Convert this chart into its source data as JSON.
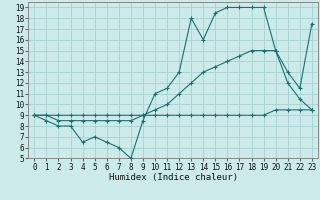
{
  "xlabel": "Humidex (Indice chaleur)",
  "background_color": "#cceaea",
  "grid_color": "#aad4d4",
  "line_color": "#1a7070",
  "xlim": [
    -0.5,
    23.5
  ],
  "ylim": [
    5,
    19.5
  ],
  "xticks": [
    0,
    1,
    2,
    3,
    4,
    5,
    6,
    7,
    8,
    9,
    10,
    11,
    12,
    13,
    14,
    15,
    16,
    17,
    18,
    19,
    20,
    21,
    22,
    23
  ],
  "yticks": [
    5,
    6,
    7,
    8,
    9,
    10,
    11,
    12,
    13,
    14,
    15,
    16,
    17,
    18,
    19
  ],
  "line1_x": [
    0,
    1,
    2,
    3,
    4,
    5,
    6,
    7,
    8,
    9,
    10,
    11,
    12,
    13,
    14,
    15,
    16,
    17,
    18,
    19,
    20,
    21,
    22,
    23
  ],
  "line1_y": [
    9,
    8.5,
    8,
    8,
    6.5,
    7,
    6.5,
    6,
    5,
    8.5,
    11,
    11.5,
    13,
    18,
    16,
    18.5,
    19,
    19,
    19,
    19,
    15,
    13,
    11.5,
    17.5
  ],
  "line2_x": [
    0,
    1,
    2,
    3,
    4,
    5,
    6,
    7,
    8,
    9,
    10,
    11,
    12,
    13,
    14,
    15,
    16,
    17,
    18,
    19,
    20,
    21,
    22,
    23
  ],
  "line2_y": [
    9,
    9,
    9,
    9,
    9,
    9,
    9,
    9,
    9,
    9,
    9,
    9,
    9,
    9,
    9,
    9,
    9,
    9,
    9,
    9,
    9.5,
    9.5,
    9.5,
    9.5
  ],
  "line3_x": [
    0,
    1,
    2,
    3,
    4,
    5,
    6,
    7,
    8,
    9,
    10,
    11,
    12,
    13,
    14,
    15,
    16,
    17,
    18,
    19,
    20,
    21,
    22,
    23
  ],
  "line3_y": [
    9,
    9,
    8.5,
    8.5,
    8.5,
    8.5,
    8.5,
    8.5,
    8.5,
    9,
    9.5,
    10,
    11,
    12,
    13,
    13.5,
    14,
    14.5,
    15,
    15,
    15,
    12,
    10.5,
    9.5
  ],
  "xlabel_fontsize": 6.5,
  "tick_fontsize": 5.5
}
